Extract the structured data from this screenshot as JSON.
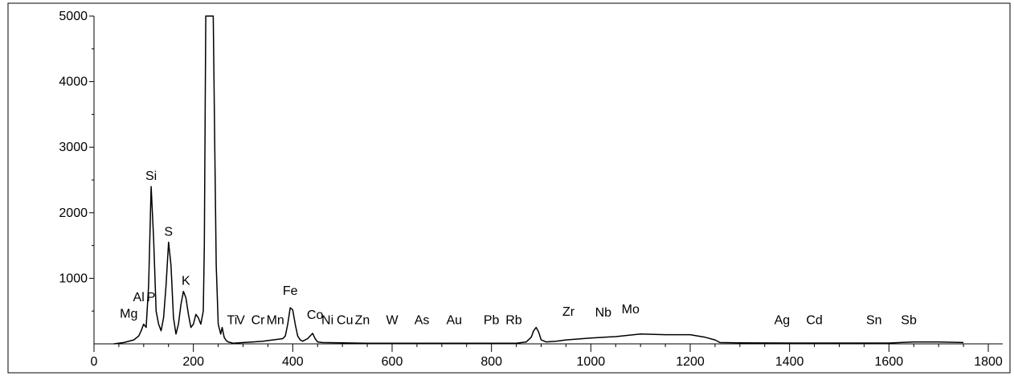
{
  "chart_data": {
    "type": "line",
    "title": "",
    "xlabel": "",
    "ylabel": "",
    "xlim": [
      0,
      1800
    ],
    "ylim": [
      0,
      5000
    ],
    "grid": false,
    "x_ticks": [
      0,
      200,
      400,
      600,
      800,
      1000,
      1200,
      1400,
      1600,
      1800
    ],
    "y_ticks": [
      1000,
      2000,
      3000,
      4000,
      5000
    ],
    "colors": {
      "line": "#000000",
      "axis": "#000000",
      "background": "#ffffff"
    },
    "series": [
      {
        "x": [
          40,
          60,
          80,
          90,
          95,
          100,
          105,
          110,
          115,
          120,
          125,
          130,
          135,
          140,
          145,
          150,
          155,
          160,
          165,
          170,
          175,
          180,
          185,
          190,
          195,
          200,
          205,
          210,
          215,
          220,
          222,
          225,
          228,
          232,
          240,
          243,
          246,
          250,
          255,
          258,
          262,
          266,
          270,
          275,
          280,
          300,
          320,
          340,
          360,
          380,
          385,
          390,
          395,
          400,
          405,
          410,
          415,
          420,
          430,
          440,
          445,
          450,
          460,
          500,
          550,
          600,
          650,
          700,
          750,
          800,
          850,
          870,
          880,
          885,
          890,
          895,
          900,
          910,
          930,
          950,
          1000,
          1050,
          1100,
          1150,
          1200,
          1230,
          1250,
          1260,
          1300,
          1400,
          1500,
          1600,
          1650,
          1700,
          1750
        ],
        "y": [
          0,
          20,
          60,
          120,
          200,
          300,
          250,
          900,
          2400,
          1600,
          500,
          300,
          200,
          400,
          900,
          1550,
          1200,
          400,
          150,
          300,
          600,
          800,
          700,
          450,
          250,
          300,
          450,
          400,
          300,
          500,
          1500,
          5000,
          5000,
          5000,
          5000,
          3000,
          1200,
          300,
          150,
          250,
          100,
          50,
          30,
          20,
          10,
          20,
          30,
          40,
          60,
          80,
          120,
          300,
          550,
          520,
          300,
          120,
          60,
          40,
          80,
          160,
          80,
          30,
          20,
          15,
          10,
          10,
          10,
          10,
          10,
          10,
          10,
          30,
          100,
          200,
          250,
          180,
          60,
          30,
          40,
          60,
          90,
          110,
          150,
          140,
          140,
          100,
          60,
          20,
          15,
          12,
          12,
          12,
          30,
          30,
          20
        ]
      }
    ],
    "annotations": [
      {
        "text": "Si",
        "x": 115,
        "y": 2400
      },
      {
        "text": "S",
        "x": 150,
        "y": 1550
      },
      {
        "text": "K",
        "x": 185,
        "y": 800
      },
      {
        "text": "Al",
        "x": 90,
        "y": 550
      },
      {
        "text": "P",
        "x": 115,
        "y": 550
      },
      {
        "text": "Mg",
        "x": 70,
        "y": 300
      },
      {
        "text": "Fe",
        "x": 395,
        "y": 650
      },
      {
        "text": "Co",
        "x": 445,
        "y": 280
      },
      {
        "text": "Ti",
        "x": 278,
        "y": 200
      },
      {
        "text": "V",
        "x": 295,
        "y": 200
      },
      {
        "text": "Cr",
        "x": 330,
        "y": 200
      },
      {
        "text": "Mn",
        "x": 365,
        "y": 200
      },
      {
        "text": "Ni",
        "x": 470,
        "y": 200
      },
      {
        "text": "Cu",
        "x": 505,
        "y": 200
      },
      {
        "text": "Zn",
        "x": 540,
        "y": 200
      },
      {
        "text": "W",
        "x": 600,
        "y": 200
      },
      {
        "text": "As",
        "x": 660,
        "y": 200
      },
      {
        "text": "Au",
        "x": 725,
        "y": 200
      },
      {
        "text": "Pb",
        "x": 800,
        "y": 200
      },
      {
        "text": "Rb",
        "x": 845,
        "y": 200
      },
      {
        "text": "Zr",
        "x": 955,
        "y": 330
      },
      {
        "text": "Nb",
        "x": 1025,
        "y": 320
      },
      {
        "text": "Mo",
        "x": 1080,
        "y": 370
      },
      {
        "text": "Ag",
        "x": 1385,
        "y": 200
      },
      {
        "text": "Cd",
        "x": 1450,
        "y": 200
      },
      {
        "text": "Sn",
        "x": 1570,
        "y": 200
      },
      {
        "text": "Sb",
        "x": 1640,
        "y": 200
      }
    ]
  }
}
